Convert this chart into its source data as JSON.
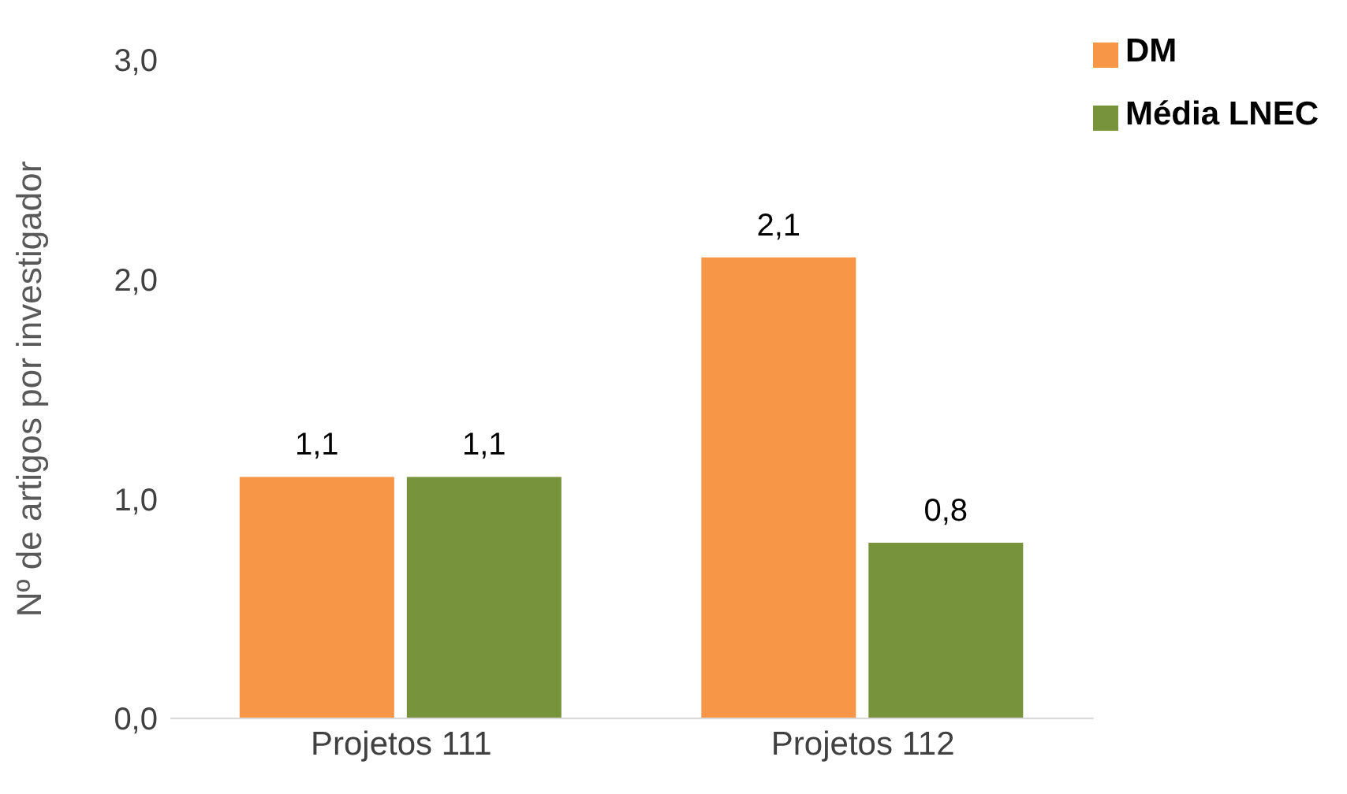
{
  "chart_data": {
    "type": "bar",
    "ylabel": "Nº de artigos por investigador",
    "categories": [
      "Projetos 111",
      "Projetos 112"
    ],
    "series": [
      {
        "name": "DM",
        "color": "#f79646",
        "values": [
          1.1,
          2.1
        ],
        "value_labels": [
          "1,1",
          "2,1"
        ]
      },
      {
        "name": "Média LNEC",
        "color": "#77933c",
        "values": [
          1.1,
          0.8
        ],
        "value_labels": [
          "1,1",
          "0,8"
        ]
      }
    ],
    "ylim": [
      0,
      3
    ],
    "yticks": [
      {
        "value": 0,
        "label": "0,0"
      },
      {
        "value": 1,
        "label": "1,0"
      },
      {
        "value": 2,
        "label": "2,0"
      },
      {
        "value": 3,
        "label": "3,0"
      }
    ],
    "legend": "top right"
  }
}
